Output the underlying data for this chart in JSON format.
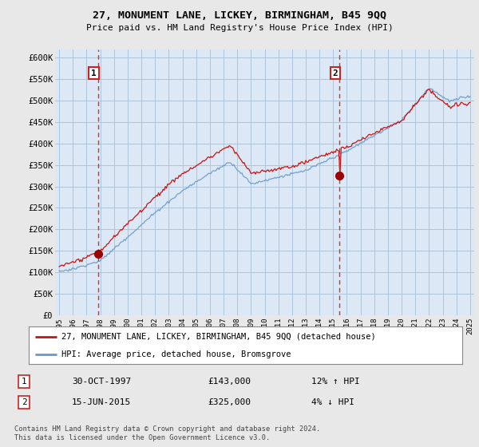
{
  "title": "27, MONUMENT LANE, LICKEY, BIRMINGHAM, B45 9QQ",
  "subtitle": "Price paid vs. HM Land Registry's House Price Index (HPI)",
  "bg_color": "#e8e8e8",
  "plot_bg_color": "#dce8f5",
  "grid_color": "#b0c4d8",
  "hpi_color": "#6699cc",
  "house_color": "#cc1111",
  "marker_color": "#990000",
  "dashed_color": "#cc3333",
  "ylim": [
    0,
    620000
  ],
  "yticks": [
    0,
    50000,
    100000,
    150000,
    200000,
    250000,
    300000,
    350000,
    400000,
    450000,
    500000,
    550000,
    600000
  ],
  "ytick_labels": [
    "£0",
    "£50K",
    "£100K",
    "£150K",
    "£200K",
    "£250K",
    "£300K",
    "£350K",
    "£400K",
    "£450K",
    "£500K",
    "£550K",
    "£600K"
  ],
  "sale1_year": 1997.83,
  "sale1_price": 143000,
  "sale1_label": "1",
  "sale2_year": 2015.46,
  "sale2_price": 325000,
  "sale2_label": "2",
  "legend_line1": "27, MONUMENT LANE, LICKEY, BIRMINGHAM, B45 9QQ (detached house)",
  "legend_line2": "HPI: Average price, detached house, Bromsgrove",
  "note1_label": "1",
  "note1_date": "30-OCT-1997",
  "note1_price": "£143,000",
  "note1_hpi": "12% ↑ HPI",
  "note2_label": "2",
  "note2_date": "15-JUN-2015",
  "note2_price": "£325,000",
  "note2_hpi": "4% ↓ HPI",
  "copyright": "Contains HM Land Registry data © Crown copyright and database right 2024.\nThis data is licensed under the Open Government Licence v3.0."
}
